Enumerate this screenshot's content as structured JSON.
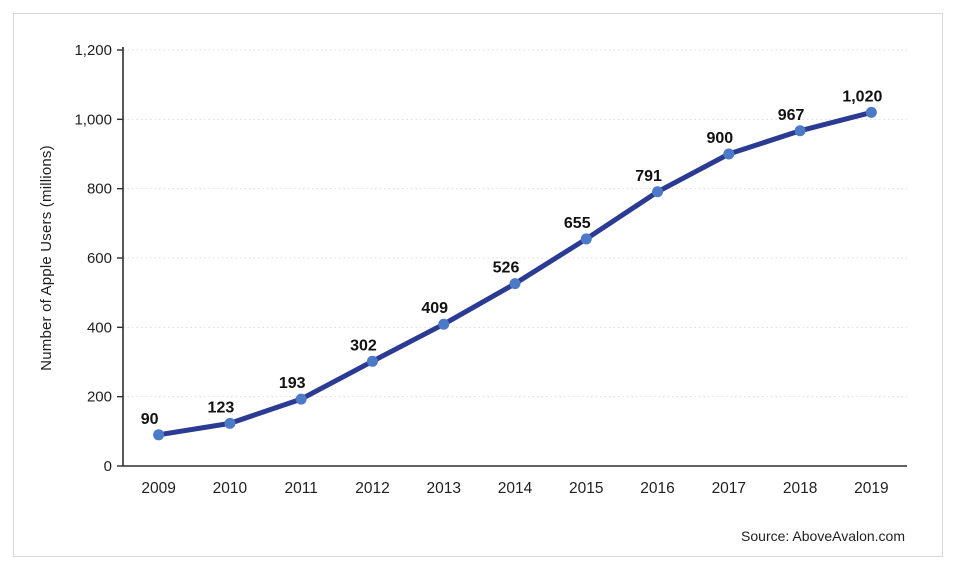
{
  "chart_data": {
    "type": "line",
    "categories": [
      "2009",
      "2010",
      "2011",
      "2012",
      "2013",
      "2014",
      "2015",
      "2016",
      "2017",
      "2018",
      "2019"
    ],
    "values": [
      90,
      123,
      193,
      302,
      409,
      526,
      655,
      791,
      900,
      967,
      1020
    ],
    "point_labels": [
      "90",
      "123",
      "193",
      "302",
      "409",
      "526",
      "655",
      "791",
      "900",
      "967",
      "1,020"
    ],
    "title": "",
    "xlabel": "",
    "ylabel": "Number of Apple Users (millions)",
    "ylim": [
      0,
      1200
    ],
    "ytick_values": [
      0,
      200,
      400,
      600,
      800,
      1000,
      1200
    ],
    "ytick_labels": [
      "0",
      "200",
      "400",
      "600",
      "800",
      "1,000",
      "1,200"
    ],
    "grid": "horizontal-dotted",
    "legend": "none",
    "line_color": "#2b3a92",
    "marker_color": "#4c79c8",
    "grid_color": "#d9d9d9",
    "axis_color": "#2e2e2e",
    "label_color": "#111111",
    "tick_color": "#1f1f1f",
    "source": "Source: AboveAvalon.com"
  }
}
